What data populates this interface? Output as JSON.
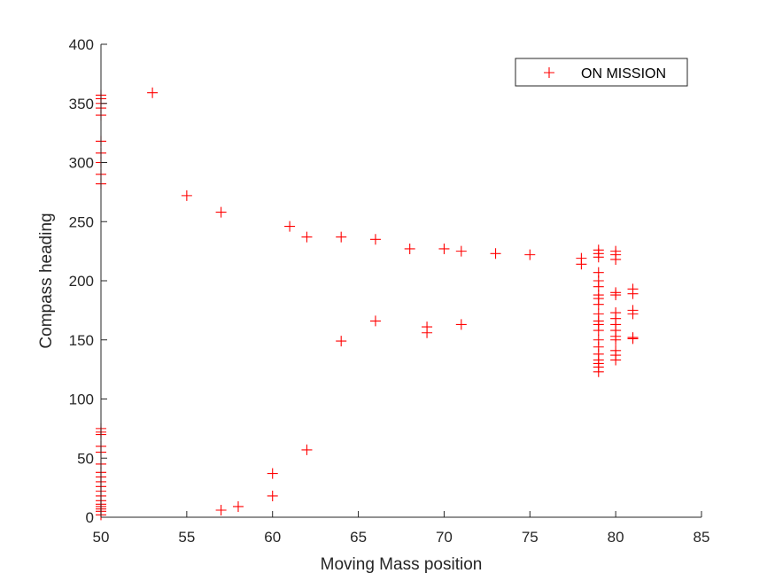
{
  "chart_data": {
    "type": "scatter",
    "title": "",
    "xlabel": "Moving Mass position",
    "ylabel": "Compass heading",
    "xlim": [
      50,
      85
    ],
    "ylim": [
      0,
      400
    ],
    "xticks": [
      50,
      55,
      60,
      65,
      70,
      75,
      80,
      85
    ],
    "yticks": [
      0,
      50,
      100,
      150,
      200,
      250,
      300,
      350,
      400
    ],
    "grid": false,
    "legend_position": "top-right",
    "marker": "plus",
    "color": "#ff0000",
    "series": [
      {
        "name": "ON MISSION",
        "points": [
          [
            50,
            2
          ],
          [
            50,
            5
          ],
          [
            50,
            7
          ],
          [
            50,
            9
          ],
          [
            50,
            11
          ],
          [
            50,
            14
          ],
          [
            50,
            18
          ],
          [
            50,
            22
          ],
          [
            50,
            26
          ],
          [
            50,
            30
          ],
          [
            50,
            34
          ],
          [
            50,
            38
          ],
          [
            50,
            45
          ],
          [
            50,
            55
          ],
          [
            50,
            60
          ],
          [
            50,
            70
          ],
          [
            50,
            72
          ],
          [
            50,
            75
          ],
          [
            50,
            282
          ],
          [
            50,
            290
          ],
          [
            50,
            300
          ],
          [
            50,
            308
          ],
          [
            50,
            318
          ],
          [
            50,
            340
          ],
          [
            50,
            346
          ],
          [
            50,
            350
          ],
          [
            50,
            354
          ],
          [
            50,
            357
          ],
          [
            53,
            359
          ],
          [
            55,
            272
          ],
          [
            57,
            258
          ],
          [
            61,
            246
          ],
          [
            62,
            237
          ],
          [
            64,
            237
          ],
          [
            66,
            235
          ],
          [
            68,
            227
          ],
          [
            70,
            227
          ],
          [
            71,
            225
          ],
          [
            73,
            223
          ],
          [
            75,
            222
          ],
          [
            78,
            219
          ],
          [
            78,
            214
          ],
          [
            64,
            149
          ],
          [
            66,
            166
          ],
          [
            69,
            161
          ],
          [
            69,
            156
          ],
          [
            71,
            163
          ],
          [
            57,
            6
          ],
          [
            58,
            9
          ],
          [
            60,
            18
          ],
          [
            60,
            37
          ],
          [
            62,
            57
          ],
          [
            79,
            123
          ],
          [
            79,
            127
          ],
          [
            79,
            130
          ],
          [
            79,
            133
          ],
          [
            79,
            138
          ],
          [
            79,
            144
          ],
          [
            79,
            150
          ],
          [
            79,
            158
          ],
          [
            79,
            163
          ],
          [
            79,
            166
          ],
          [
            79,
            172
          ],
          [
            79,
            180
          ],
          [
            79,
            185
          ],
          [
            79,
            188
          ],
          [
            79,
            195
          ],
          [
            79,
            200
          ],
          [
            79,
            207
          ],
          [
            79,
            220
          ],
          [
            79,
            223
          ],
          [
            79,
            226
          ],
          [
            80,
            133
          ],
          [
            80,
            137
          ],
          [
            80,
            141
          ],
          [
            80,
            150
          ],
          [
            80,
            153
          ],
          [
            80,
            158
          ],
          [
            80,
            163
          ],
          [
            80,
            168
          ],
          [
            80,
            173
          ],
          [
            80,
            188
          ],
          [
            80,
            190
          ],
          [
            80,
            218
          ],
          [
            80,
            222
          ],
          [
            80,
            225
          ],
          [
            81,
            151
          ],
          [
            81,
            152
          ],
          [
            81,
            172
          ],
          [
            81,
            175
          ],
          [
            81,
            189
          ],
          [
            81,
            193
          ]
        ]
      }
    ]
  }
}
